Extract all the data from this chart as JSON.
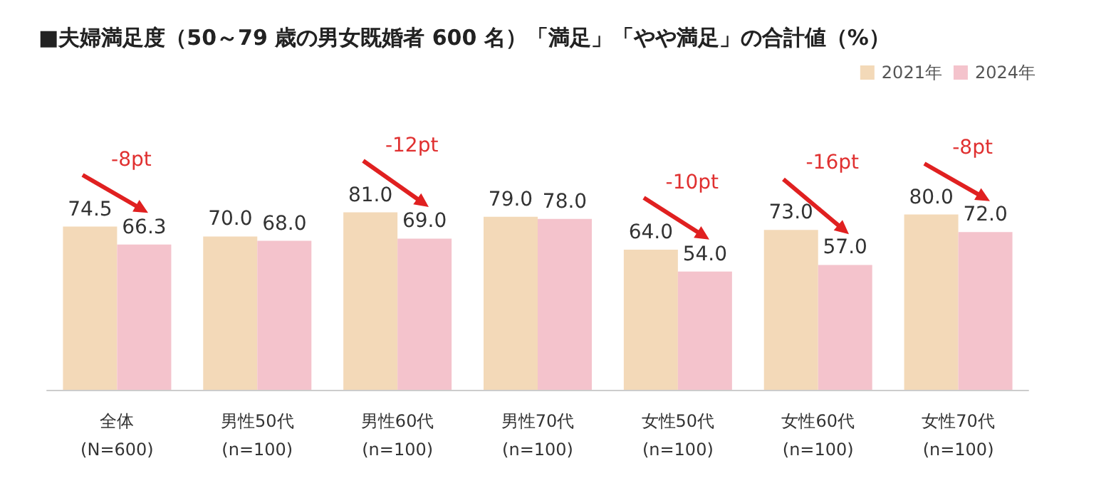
{
  "chart_data": {
    "type": "bar",
    "title": "■夫婦満足度（50～79 歳の男女既婚者 600 名）「満足」「やや満足」の合計値（%）",
    "categories": [
      "全体\n(N=600)",
      "男性50代\n(n=100)",
      "男性60代\n(n=100)",
      "男性70代\n(n=100)",
      "女性50代\n(n=100)",
      "女性60代\n(n=100)",
      "女性70代\n(n=100)"
    ],
    "series": [
      {
        "name": "2021年",
        "color": "#f3d9b8",
        "values": [
          74.5,
          70.0,
          81.0,
          79.0,
          64.0,
          73.0,
          80.0
        ],
        "value_labels": [
          "74.5",
          "70.0",
          "81.0",
          "79.0",
          "64.0",
          "73.0",
          "80.0"
        ]
      },
      {
        "name": "2024年",
        "color": "#f4c3cc",
        "values": [
          66.3,
          68.0,
          69.0,
          78.0,
          54.0,
          57.0,
          72.0
        ],
        "value_labels": [
          "66.3",
          "68.0",
          "69.0",
          "78.0",
          "54.0",
          "57.0",
          "72.0"
        ]
      }
    ],
    "legend": "top right",
    "annotations": [
      "-8pt",
      "-12pt",
      "-10pt",
      "-16pt",
      "-8pt"
    ]
  }
}
